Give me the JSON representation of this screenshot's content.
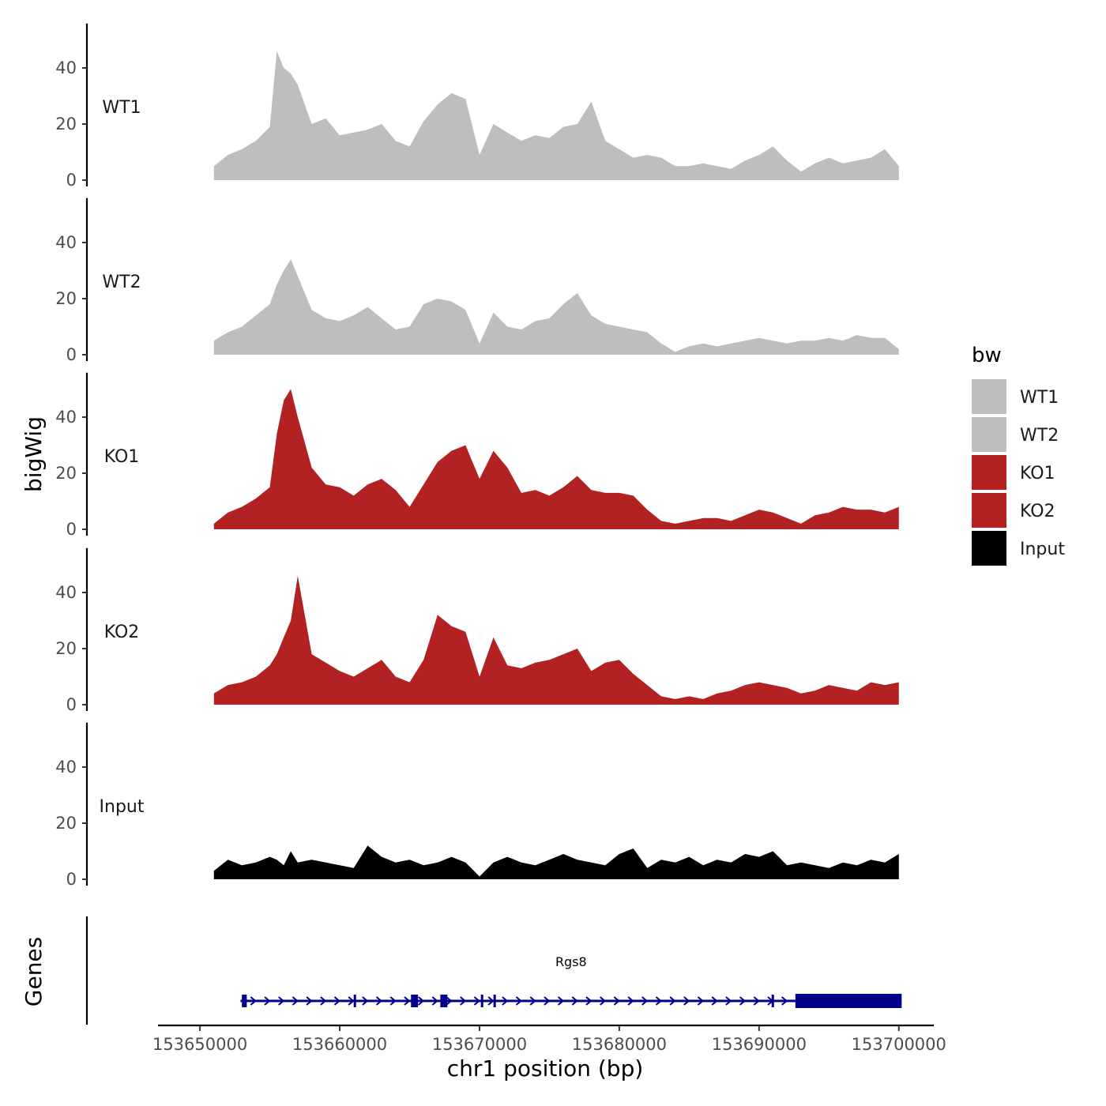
{
  "chart_data": {
    "type": "area",
    "xlabel": "chr1 position (bp)",
    "ylabel": "bigWig",
    "genes_label": "Genes",
    "xlim": [
      153647000,
      153702500
    ],
    "x_ticks": [
      153650000,
      153660000,
      153670000,
      153680000,
      153690000,
      153700000
    ],
    "x_tick_labels": [
      "153650000",
      "153660000",
      "153670000",
      "153680000",
      "153690000",
      "153700000"
    ],
    "ylim": [
      0,
      55
    ],
    "y_ticks": [
      0,
      20,
      40
    ],
    "y_tick_labels": [
      "0",
      "20",
      "40"
    ],
    "legend": {
      "title": "bw",
      "entries": [
        {
          "label": "WT1",
          "color": "#bebebe"
        },
        {
          "label": "WT2",
          "color": "#bebebe"
        },
        {
          "label": "KO1",
          "color": "#b22222"
        },
        {
          "label": "KO2",
          "color": "#b22222"
        },
        {
          "label": "Input",
          "color": "#000000"
        }
      ]
    },
    "series": [
      {
        "name": "WT1",
        "color": "#bebebe",
        "x": [
          153651000,
          153652000,
          153653000,
          153654000,
          153655000,
          153655500,
          153656000,
          153656500,
          153657000,
          153658000,
          153659000,
          153660000,
          153661000,
          153662000,
          153663000,
          153664000,
          153665000,
          153666000,
          153667000,
          153668000,
          153669000,
          153670000,
          153671000,
          153672000,
          153673000,
          153674000,
          153675000,
          153676000,
          153677000,
          153678000,
          153679000,
          153680000,
          153681000,
          153682000,
          153683000,
          153684000,
          153685000,
          153686000,
          153687000,
          153688000,
          153689000,
          153690000,
          153691000,
          153692000,
          153693000,
          153694000,
          153695000,
          153696000,
          153697000,
          153698000,
          153699000,
          153700000
        ],
        "values": [
          5,
          9,
          11,
          14,
          19,
          46,
          40,
          38,
          34,
          20,
          22,
          16,
          17,
          18,
          20,
          14,
          12,
          21,
          27,
          31,
          29,
          9,
          20,
          17,
          14,
          16,
          15,
          19,
          20,
          28,
          14,
          11,
          8,
          9,
          8,
          5,
          5,
          6,
          5,
          4,
          7,
          9,
          12,
          7,
          3,
          6,
          8,
          6,
          7,
          8,
          11,
          5
        ]
      },
      {
        "name": "WT2",
        "color": "#bebebe",
        "x": [
          153651000,
          153652000,
          153653000,
          153654000,
          153655000,
          153655500,
          153656000,
          153656500,
          153657000,
          153658000,
          153659000,
          153660000,
          153661000,
          153662000,
          153663000,
          153664000,
          153665000,
          153666000,
          153667000,
          153668000,
          153669000,
          153670000,
          153671000,
          153672000,
          153673000,
          153674000,
          153675000,
          153676000,
          153677000,
          153678000,
          153679000,
          153680000,
          153681000,
          153682000,
          153683000,
          153684000,
          153685000,
          153686000,
          153687000,
          153688000,
          153689000,
          153690000,
          153691000,
          153692000,
          153693000,
          153694000,
          153695000,
          153696000,
          153697000,
          153698000,
          153699000,
          153700000
        ],
        "values": [
          5,
          8,
          10,
          14,
          18,
          25,
          30,
          34,
          28,
          16,
          13,
          12,
          14,
          17,
          13,
          9,
          10,
          18,
          20,
          19,
          16,
          4,
          15,
          10,
          9,
          12,
          13,
          18,
          22,
          14,
          11,
          10,
          9,
          8,
          4,
          1,
          3,
          4,
          3,
          4,
          5,
          6,
          5,
          4,
          5,
          5,
          6,
          5,
          7,
          6,
          6,
          2
        ]
      },
      {
        "name": "KO1",
        "color": "#b22222",
        "x": [
          153651000,
          153652000,
          153653000,
          153654000,
          153655000,
          153655500,
          153656000,
          153656500,
          153657000,
          153658000,
          153659000,
          153660000,
          153661000,
          153662000,
          153663000,
          153664000,
          153665000,
          153666000,
          153667000,
          153668000,
          153669000,
          153670000,
          153671000,
          153672000,
          153673000,
          153674000,
          153675000,
          153676000,
          153677000,
          153678000,
          153679000,
          153680000,
          153681000,
          153682000,
          153683000,
          153684000,
          153685000,
          153686000,
          153687000,
          153688000,
          153689000,
          153690000,
          153691000,
          153692000,
          153693000,
          153694000,
          153695000,
          153696000,
          153697000,
          153698000,
          153699000,
          153700000
        ],
        "values": [
          2,
          6,
          8,
          11,
          15,
          34,
          46,
          50,
          40,
          22,
          16,
          15,
          12,
          16,
          18,
          14,
          8,
          16,
          24,
          28,
          30,
          18,
          28,
          22,
          13,
          14,
          12,
          15,
          19,
          14,
          13,
          13,
          12,
          7,
          3,
          2,
          3,
          4,
          4,
          3,
          5,
          7,
          6,
          4,
          2,
          5,
          6,
          8,
          7,
          7,
          6,
          8
        ]
      },
      {
        "name": "KO2",
        "color": "#b22222",
        "x": [
          153651000,
          153652000,
          153653000,
          153654000,
          153655000,
          153655500,
          153656000,
          153656500,
          153657000,
          153658000,
          153659000,
          153660000,
          153661000,
          153662000,
          153663000,
          153664000,
          153665000,
          153666000,
          153667000,
          153668000,
          153669000,
          153670000,
          153671000,
          153672000,
          153673000,
          153674000,
          153675000,
          153676000,
          153677000,
          153678000,
          153679000,
          153680000,
          153681000,
          153682000,
          153683000,
          153684000,
          153685000,
          153686000,
          153687000,
          153688000,
          153689000,
          153690000,
          153691000,
          153692000,
          153693000,
          153694000,
          153695000,
          153696000,
          153697000,
          153698000,
          153699000,
          153700000
        ],
        "values": [
          4,
          7,
          8,
          10,
          14,
          18,
          24,
          30,
          46,
          18,
          15,
          12,
          10,
          13,
          16,
          10,
          8,
          16,
          32,
          28,
          26,
          10,
          24,
          14,
          13,
          15,
          16,
          18,
          20,
          12,
          15,
          16,
          11,
          7,
          3,
          2,
          3,
          2,
          4,
          5,
          7,
          8,
          7,
          6,
          4,
          5,
          7,
          6,
          5,
          8,
          7,
          8
        ]
      },
      {
        "name": "Input",
        "color": "#000000",
        "x": [
          153651000,
          153652000,
          153653000,
          153654000,
          153655000,
          153655500,
          153656000,
          153656500,
          153657000,
          153658000,
          153659000,
          153660000,
          153661000,
          153662000,
          153663000,
          153664000,
          153665000,
          153666000,
          153667000,
          153668000,
          153669000,
          153670000,
          153671000,
          153672000,
          153673000,
          153674000,
          153675000,
          153676000,
          153677000,
          153678000,
          153679000,
          153680000,
          153681000,
          153682000,
          153683000,
          153684000,
          153685000,
          153686000,
          153687000,
          153688000,
          153689000,
          153690000,
          153691000,
          153692000,
          153693000,
          153694000,
          153695000,
          153696000,
          153697000,
          153698000,
          153699000,
          153700000
        ],
        "values": [
          3,
          7,
          5,
          6,
          8,
          7,
          5,
          10,
          6,
          7,
          6,
          5,
          4,
          12,
          8,
          6,
          7,
          5,
          6,
          8,
          6,
          1,
          6,
          8,
          6,
          5,
          7,
          9,
          7,
          6,
          5,
          9,
          11,
          4,
          7,
          6,
          8,
          5,
          7,
          6,
          9,
          8,
          10,
          5,
          6,
          5,
          4,
          6,
          5,
          7,
          6,
          9
        ]
      }
    ],
    "genes": [
      {
        "name": "Rgs8",
        "start": 153652900,
        "end": 153700200,
        "strand": "+",
        "exons": [
          [
            153653000,
            153653350
          ],
          [
            153661000,
            153661150
          ],
          [
            153665100,
            153665600
          ],
          [
            153667200,
            153667700
          ],
          [
            153670100,
            153670250
          ],
          [
            153671000,
            153671100
          ],
          [
            153690900,
            153691050
          ],
          [
            153692600,
            153700200
          ]
        ],
        "thick_start": 153653000,
        "thick_end": 153697500
      }
    ]
  }
}
